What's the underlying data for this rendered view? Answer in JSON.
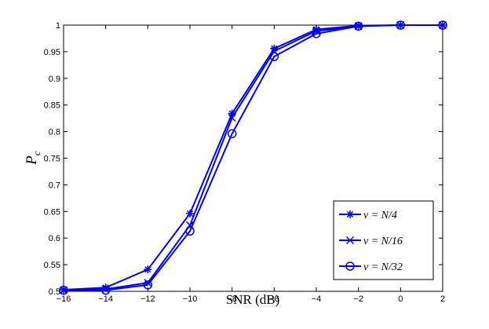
{
  "chart_data": {
    "type": "line",
    "xlabel": "SNR (dB)",
    "ylabel": {
      "main": "P",
      "sub": "c"
    },
    "xlim": [
      -16,
      2
    ],
    "ylim": [
      0.5,
      1
    ],
    "xticks": [
      -16,
      -14,
      -12,
      -10,
      -8,
      -6,
      -4,
      -2,
      0,
      2
    ],
    "yticks": [
      0.5,
      0.55,
      0.6,
      0.65,
      0.7,
      0.75,
      0.8,
      0.85,
      0.9,
      0.95,
      1
    ],
    "ytick_labels": [
      "0.5",
      "0.55",
      "0.6",
      "0.65",
      "0.7",
      "0.75",
      "0.8",
      "0.85",
      "0.9",
      "0.95",
      "1"
    ],
    "x": [
      -16,
      -14,
      -12,
      -10,
      -8,
      -6,
      -4,
      -2,
      0,
      2
    ],
    "grid": false,
    "legend_position": "bottom-right",
    "color": "#0000ff",
    "series": [
      {
        "name": "ν = N/4",
        "marker": "asterisk",
        "values": [
          0.503,
          0.507,
          0.541,
          0.646,
          0.834,
          0.956,
          0.992,
          0.999,
          1.0,
          1.0
        ]
      },
      {
        "name": "ν = N/16",
        "marker": "x",
        "values": [
          0.502,
          0.504,
          0.516,
          0.624,
          0.826,
          0.951,
          0.989,
          0.998,
          1.0,
          1.0
        ]
      },
      {
        "name": "ν = N/32",
        "marker": "circle",
        "values": [
          0.502,
          0.502,
          0.512,
          0.613,
          0.796,
          0.941,
          0.984,
          0.998,
          1.0,
          1.0
        ]
      }
    ]
  }
}
